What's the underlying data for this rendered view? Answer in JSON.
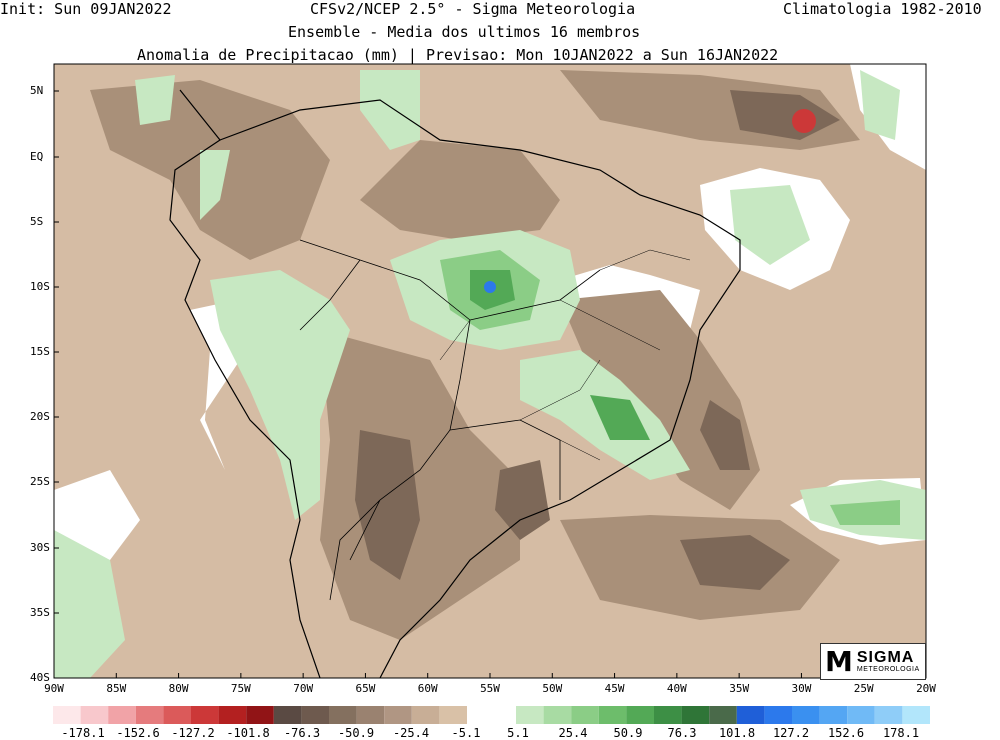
{
  "header": {
    "init": "Init: Sun 09JAN2022",
    "model": "CFSv2/NCEP 2.5° - Sigma Meteorologia",
    "clim": "Climatologia 1982-2010",
    "ensemble": "Ensemble - Media dos ultimos 16 membros",
    "variable": "Anomalia de Precipitacao (mm) | Previsao: Mon 10JAN2022 a Sun 16JAN2022"
  },
  "lat_labels": [
    "5N",
    "EQ",
    "5S",
    "10S",
    "15S",
    "20S",
    "25S",
    "30S",
    "35S",
    "40S"
  ],
  "lon_labels": [
    "90W",
    "85W",
    "80W",
    "75W",
    "70W",
    "65W",
    "60W",
    "55W",
    "50W",
    "45W",
    "40W",
    "35W",
    "30W",
    "25W",
    "20W"
  ],
  "colorbar": {
    "negative_colors": [
      "#fde8ea",
      "#f8c8cc",
      "#f1a3a7",
      "#e57b7d",
      "#db5a5a",
      "#cc3838",
      "#b32020",
      "#911416",
      "#5a4a43",
      "#6e5a4e",
      "#84705f",
      "#9a8270",
      "#b09683",
      "#c8ae96",
      "#d9c1a7"
    ],
    "positive_colors": [
      "#c7e8c2",
      "#a8dba3",
      "#8bcd86",
      "#6dbd6b",
      "#53a956",
      "#3d8f45",
      "#2f7537",
      "#4a6a4a",
      "#1f5fd8",
      "#2c79ec",
      "#3a90f0",
      "#54a6f3",
      "#70baf6",
      "#8fcdf8",
      "#b2e6fb"
    ],
    "labels": [
      "-178.1",
      "-152.6",
      "-127.2",
      "-101.8",
      "-76.3",
      "-50.9",
      "-25.4",
      "-5.1",
      "5.1",
      "25.4",
      "50.9",
      "76.3",
      "101.8",
      "127.2",
      "152.6",
      "178.1"
    ]
  },
  "logo": {
    "mark": "M",
    "name": "SIGMA",
    "sub": "METEOROLOGIA"
  },
  "colors": {
    "base_tan": "#d5bca4",
    "mid_brown": "#a99079",
    "dark_brown": "#7d6858",
    "green_light": "#c7e8c2",
    "green_mid": "#8bcd86",
    "green_dark": "#53a956",
    "peak_blue": "#2c79ec",
    "peak_red": "#cc3838"
  }
}
